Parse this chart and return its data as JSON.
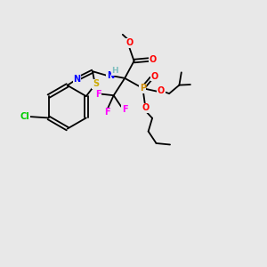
{
  "background_color": "#e8e8e8",
  "atom_colors": {
    "C": "#000000",
    "H": "#7fbfbf",
    "N": "#0000ff",
    "O": "#ff0000",
    "S": "#ccaa00",
    "P": "#cc8800",
    "F": "#ff00ff",
    "Cl": "#00cc00"
  },
  "figsize": [
    3.0,
    3.0
  ],
  "dpi": 100
}
